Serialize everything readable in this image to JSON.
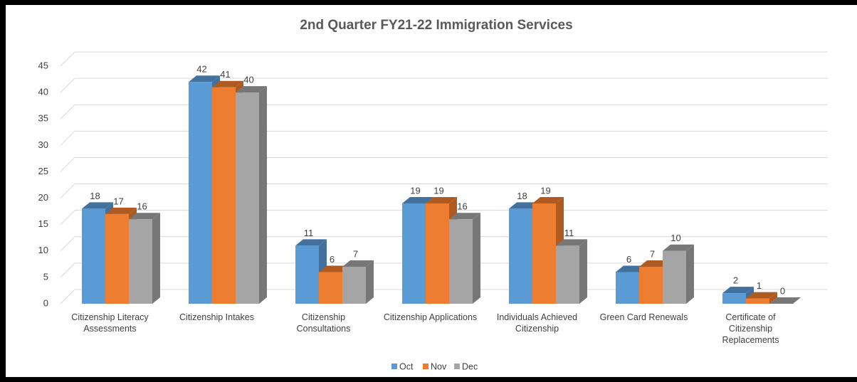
{
  "chart_data": {
    "type": "bar3d",
    "title": "2nd Quarter FY21-22 Immigration Services",
    "categories": [
      "Citizenship Literacy Assessments",
      "Citizenship Intakes",
      "Citizenship Consultations",
      "Citizenship Applications",
      "Individuals Achieved Citizenship",
      "Green Card Renewals",
      "Certificate of Citizenship Replacements"
    ],
    "series": [
      {
        "name": "Oct",
        "color": "#5b9bd5",
        "side": "#41719c",
        "values": [
          18,
          42,
          11,
          19,
          18,
          6,
          2
        ]
      },
      {
        "name": "Nov",
        "color": "#ed7d31",
        "side": "#ae5a21",
        "values": [
          17,
          41,
          6,
          19,
          19,
          7,
          1
        ]
      },
      {
        "name": "Dec",
        "color": "#a5a5a5",
        "side": "#777777",
        "values": [
          16,
          40,
          7,
          16,
          11,
          10,
          0
        ]
      }
    ],
    "ylim": [
      0,
      45
    ],
    "yticks": [
      0,
      5,
      10,
      15,
      20,
      25,
      30,
      35,
      40,
      45
    ],
    "grid": true,
    "legend": "bottom"
  }
}
